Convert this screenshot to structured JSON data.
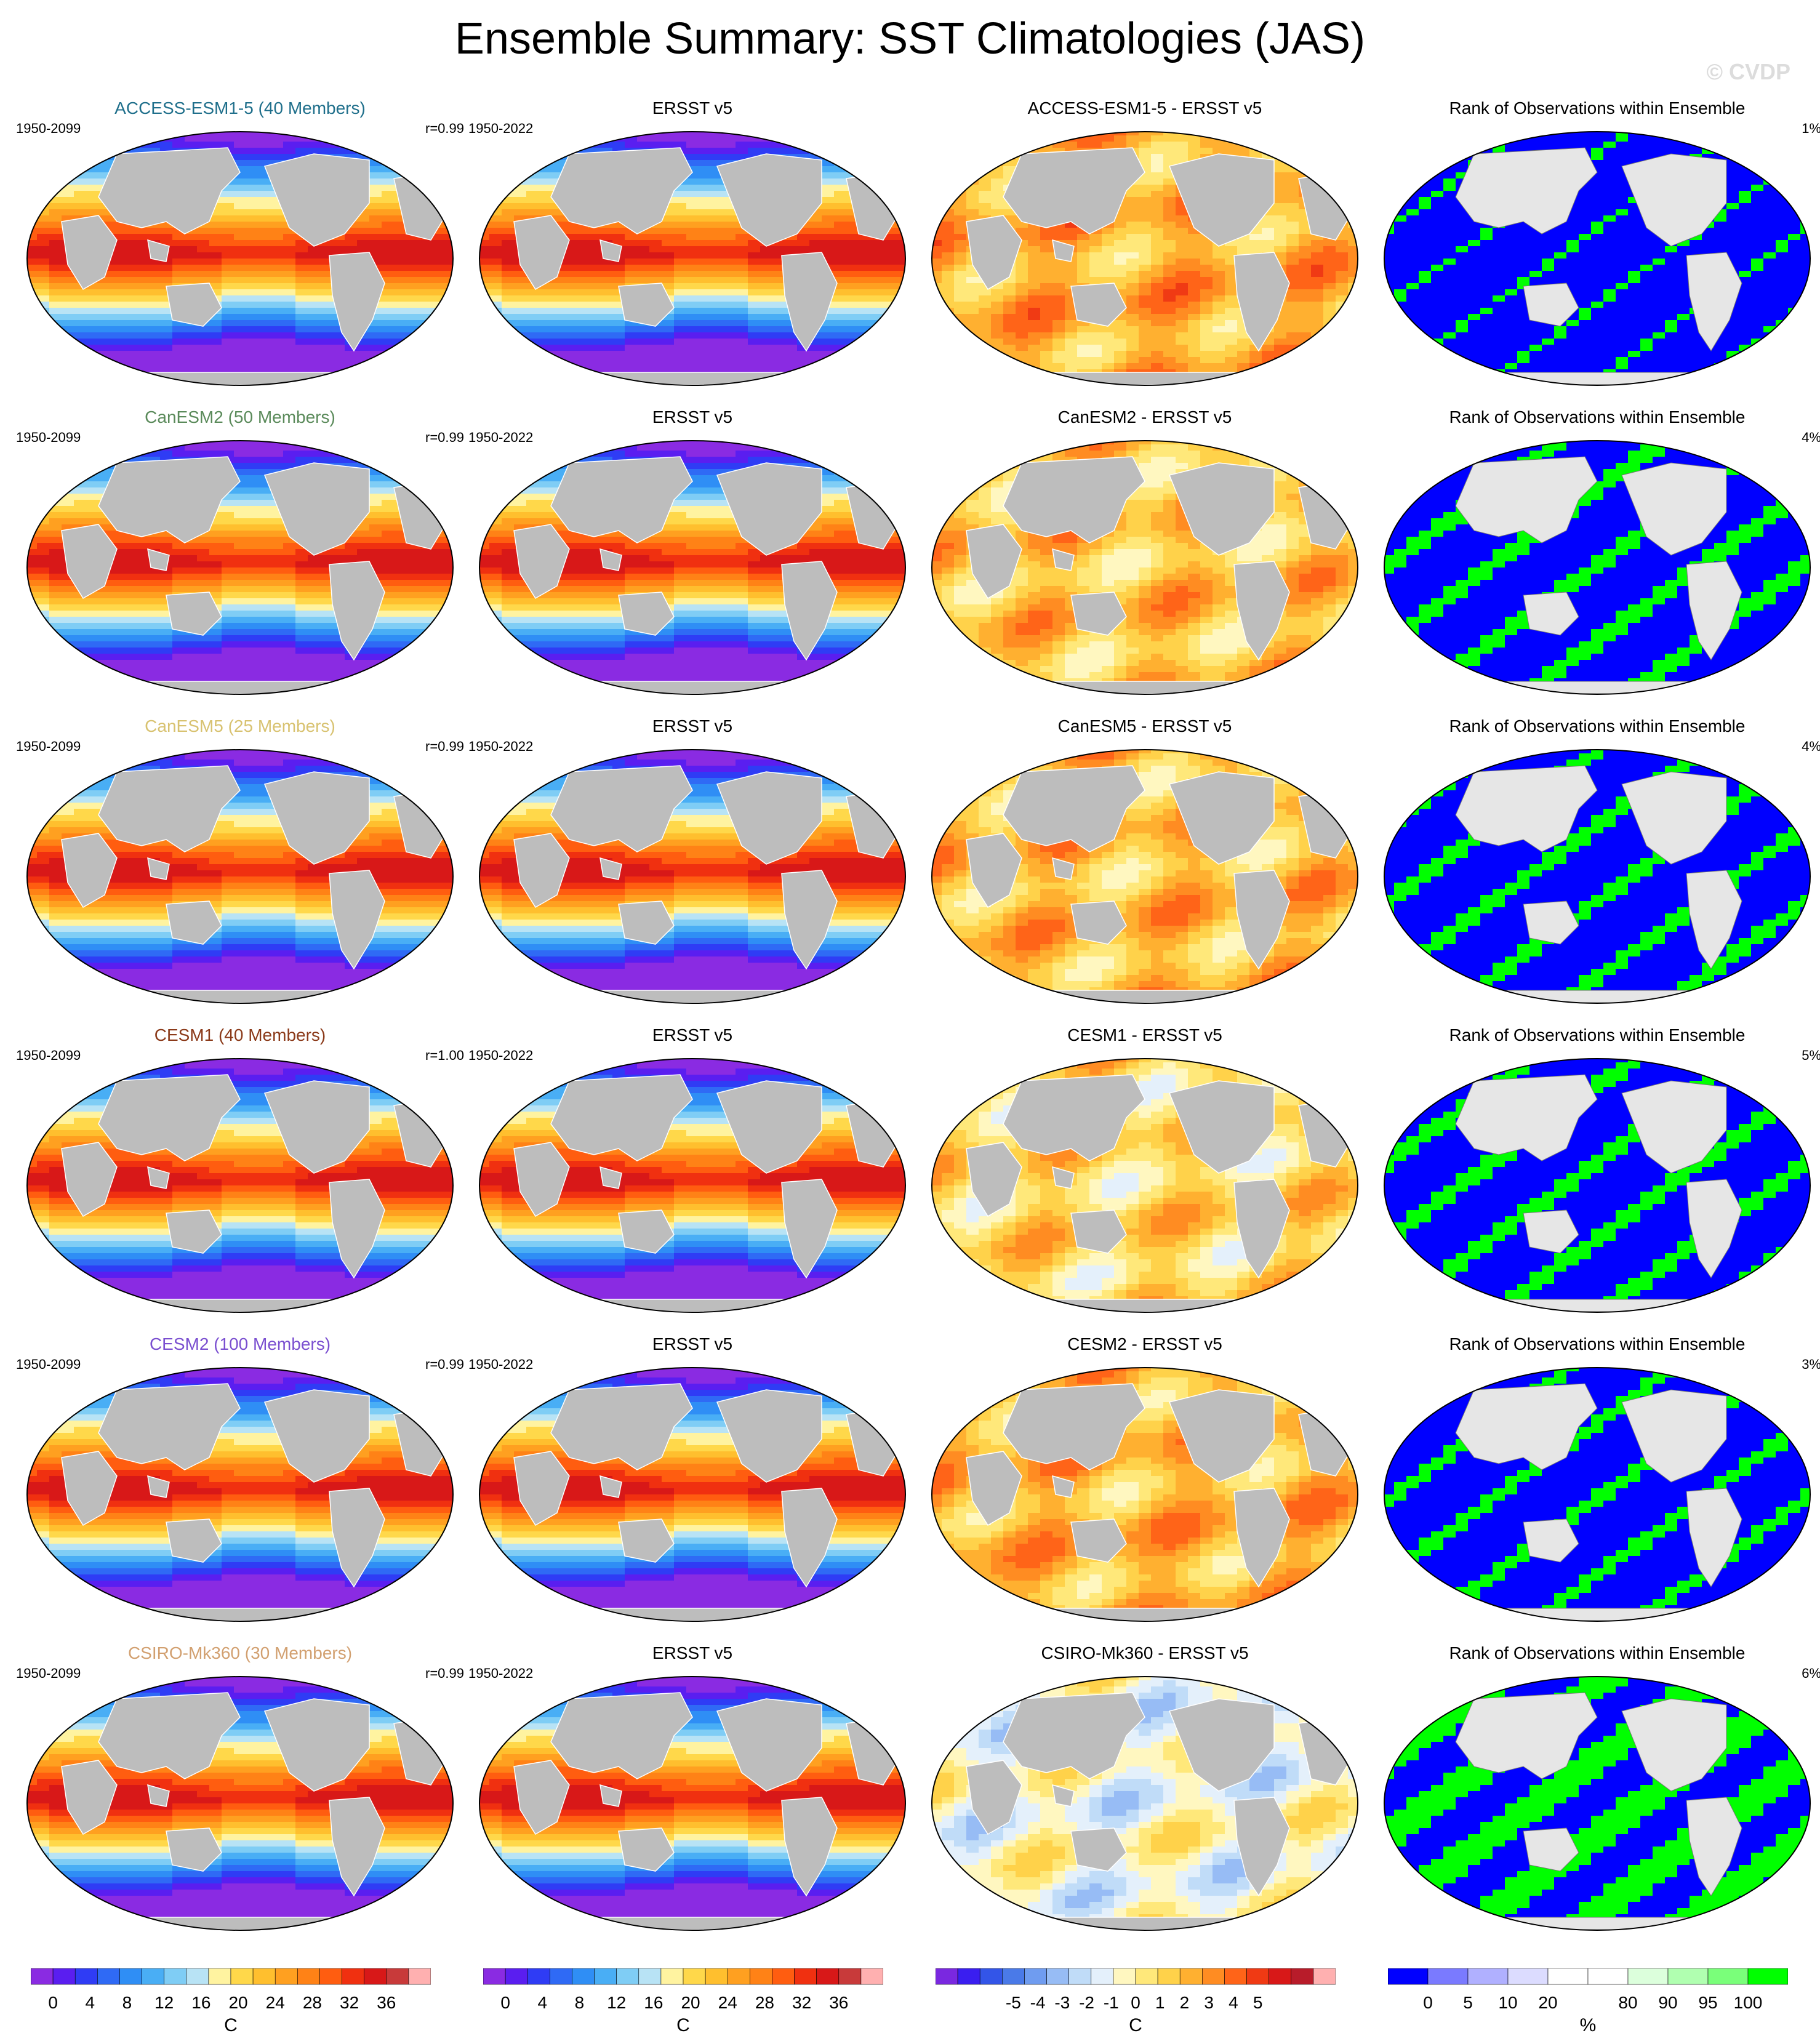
{
  "title": "Ensemble Summary: SST Climatologies (JAS)",
  "watermark": "© CVDP",
  "rows": [
    {
      "model": "ACCESS-ESM1-5 (40 Members)",
      "model_color": "#1f6f8b",
      "period": "1950-2099",
      "r": "r=0.99",
      "diff_title": "ACCESS-ESM1-5 - ERSST v5",
      "rank_pct": "1%",
      "obs_period": "1950-2022",
      "obs_title": "ERSST v5",
      "rank_title": "Rank of Observations within Ensemble",
      "diff_bias": 0.9,
      "green_frac": 0.03
    },
    {
      "model": "CanESM2 (50 Members)",
      "model_color": "#5a8a5a",
      "period": "1950-2099",
      "r": "r=0.99",
      "diff_title": "CanESM2 - ERSST v5",
      "rank_pct": "4%",
      "obs_period": "1950-2022",
      "obs_title": "ERSST v5",
      "rank_title": "Rank of Observations within Ensemble",
      "diff_bias": 0.6,
      "green_frac": 0.15
    },
    {
      "model": "CanESM5 (25 Members)",
      "model_color": "#d8c270",
      "period": "1950-2099",
      "r": "r=0.99",
      "diff_title": "CanESM5 - ERSST v5",
      "rank_pct": "4%",
      "obs_period": "1950-2022",
      "obs_title": "ERSST v5",
      "rank_title": "Rank of Observations within Ensemble",
      "diff_bias": 0.7,
      "green_frac": 0.12
    },
    {
      "model": "CESM1 (40 Members)",
      "model_color": "#8b3a1a",
      "period": "1950-2099",
      "r": "r=1.00",
      "diff_title": "CESM1 - ERSST v5",
      "rank_pct": "5%",
      "obs_period": "1950-2022",
      "obs_title": "ERSST v5",
      "rank_title": "Rank of Observations within Ensemble",
      "diff_bias": 0.3,
      "green_frac": 0.14
    },
    {
      "model": "CESM2 (100 Members)",
      "model_color": "#7a4fd0",
      "period": "1950-2099",
      "r": "r=0.99",
      "diff_title": "CESM2 - ERSST v5",
      "rank_pct": "3%",
      "obs_period": "1950-2022",
      "obs_title": "ERSST v5",
      "rank_title": "Rank of Observations within Ensemble",
      "diff_bias": 0.8,
      "green_frac": 0.1
    },
    {
      "model": "CSIRO-Mk360 (30 Members)",
      "model_color": "#d2a070",
      "period": "1950-2099",
      "r": "r=0.99",
      "diff_title": "CSIRO-Mk360 - ERSST v5",
      "rank_pct": "6%",
      "obs_period": "1950-2022",
      "obs_title": "ERSST v5",
      "rank_title": "Rank of Observations within Ensemble",
      "diff_bias": -0.6,
      "green_frac": 0.45
    }
  ],
  "colorbars": [
    {
      "unit": "C",
      "labels": [
        "0",
        "4",
        "8",
        "12",
        "16",
        "20",
        "24",
        "28",
        "32",
        "36"
      ],
      "colors": [
        "#8a2be2",
        "#5a1ef0",
        "#2f3cf5",
        "#2f6af5",
        "#2f8ef5",
        "#49aef5",
        "#7fcdf5",
        "#b8e3f5",
        "#fff3a0",
        "#ffd84a",
        "#ffbf2e",
        "#ffa020",
        "#ff8216",
        "#ff5d10",
        "#f03010",
        "#d81818",
        "#c83a3a",
        "#ffb0b0"
      ]
    },
    {
      "unit": "C",
      "labels": [
        "0",
        "4",
        "8",
        "12",
        "16",
        "20",
        "24",
        "28",
        "32",
        "36"
      ],
      "colors": [
        "#8a2be2",
        "#5a1ef0",
        "#2f3cf5",
        "#2f6af5",
        "#2f8ef5",
        "#49aef5",
        "#7fcdf5",
        "#b8e3f5",
        "#fff3a0",
        "#ffd84a",
        "#ffbf2e",
        "#ffa020",
        "#ff8216",
        "#ff5d10",
        "#f03010",
        "#d81818",
        "#c83a3a",
        "#ffb0b0"
      ]
    },
    {
      "unit": "C",
      "labels": [
        "-5",
        "-4",
        "-3",
        "-2",
        "-1",
        "0",
        "1",
        "2",
        "3",
        "4",
        "5"
      ],
      "colors": [
        "#7a28e0",
        "#3a1ef0",
        "#3355e8",
        "#4a7ae8",
        "#6f9cf0",
        "#97bcf5",
        "#c0dcf8",
        "#e4f0fb",
        "#fff7c0",
        "#ffe87a",
        "#ffd24a",
        "#ffb030",
        "#ff8c22",
        "#ff6418",
        "#f03a14",
        "#d81818",
        "#b81c2a",
        "#ffb0b0"
      ]
    },
    {
      "unit": "%",
      "labels": [
        "0",
        "5",
        "10",
        "20",
        "80",
        "90",
        "95",
        "100"
      ],
      "colors": [
        "#0000ff",
        "#7a7aff",
        "#b0b0ff",
        "#dcdcff",
        "#ffffff",
        "#ffffff",
        "#dcffdc",
        "#b0ffb0",
        "#7aff7a",
        "#00ff00"
      ]
    }
  ]
}
